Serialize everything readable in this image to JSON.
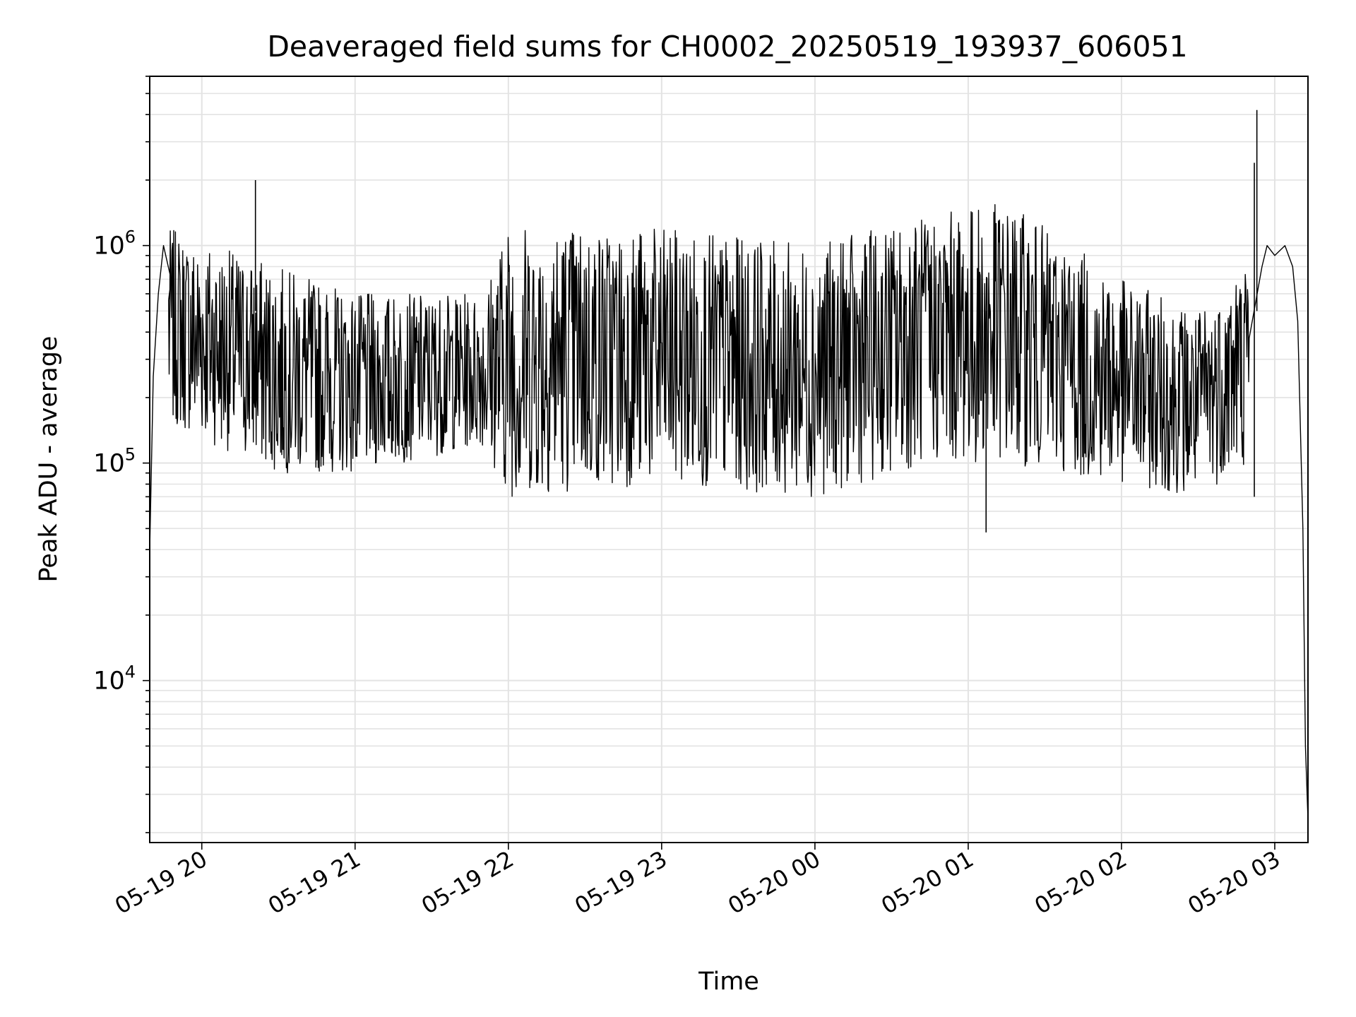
{
  "chart_data": {
    "type": "line",
    "title": "Deaveraged field sums for CH0002_20250519_193937_606051",
    "xlabel": "Time",
    "ylabel": "Peak ADU - average",
    "yscale": "log",
    "ylim": [
      1800,
      6000000
    ],
    "xlim": [
      "2025-05-19 19:39:37",
      "2025-05-20 03:13:00"
    ],
    "grid": true,
    "line_color": "#000000",
    "x_ticks": [
      {
        "t": "2025-05-19 20:00",
        "label": "05-19 20"
      },
      {
        "t": "2025-05-19 21:00",
        "label": "05-19 21"
      },
      {
        "t": "2025-05-19 22:00",
        "label": "05-19 22"
      },
      {
        "t": "2025-05-19 23:00",
        "label": "05-19 23"
      },
      {
        "t": "2025-05-20 00:00",
        "label": "05-20 00"
      },
      {
        "t": "2025-05-20 01:00",
        "label": "05-20 01"
      },
      {
        "t": "2025-05-20 02:00",
        "label": "05-20 02"
      },
      {
        "t": "2025-05-20 03:00",
        "label": "05-20 03"
      }
    ],
    "y_ticks": [
      {
        "value": 10000,
        "base": "10",
        "exp": "4"
      },
      {
        "value": 100000,
        "base": "10",
        "exp": "5"
      },
      {
        "value": 1000000,
        "base": "10",
        "exp": "6"
      }
    ],
    "series": [
      {
        "x": [
          "2025-05-19 19:39:37",
          "2025-05-19 19:41",
          "2025-05-19 19:43",
          "2025-05-19 19:45",
          "2025-05-19 19:48",
          "2025-05-19 19:50",
          "2025-05-19 19:53",
          "2025-05-19 19:56",
          "2025-05-19 19:59",
          "2025-05-19 20:05",
          "2025-05-19 20:11",
          "2025-05-19 20:16",
          "2025-05-19 20:21",
          "2025-05-19 20:24",
          "2025-05-19 20:30",
          "2025-05-19 20:40",
          "2025-05-19 20:50",
          "2025-05-19 21:00",
          "2025-05-19 21:10",
          "2025-05-19 21:20",
          "2025-05-19 21:30",
          "2025-05-19 21:40",
          "2025-05-19 21:50",
          "2025-05-19 21:56",
          "2025-05-19 22:00",
          "2025-05-19 22:10",
          "2025-05-19 22:20",
          "2025-05-19 22:30",
          "2025-05-19 22:40",
          "2025-05-19 22:50",
          "2025-05-19 23:00",
          "2025-05-19 23:10",
          "2025-05-19 23:20",
          "2025-05-19 23:30",
          "2025-05-19 23:40",
          "2025-05-19 23:50",
          "2025-05-20 00:00",
          "2025-05-20 00:10",
          "2025-05-20 00:20",
          "2025-05-20 00:30",
          "2025-05-20 00:40",
          "2025-05-20 00:50",
          "2025-05-20 01:00",
          "2025-05-20 01:05",
          "2025-05-20 01:10",
          "2025-05-20 01:20",
          "2025-05-20 01:30",
          "2025-05-20 01:40",
          "2025-05-20 01:50",
          "2025-05-20 02:00",
          "2025-05-20 02:10",
          "2025-05-20 02:20",
          "2025-05-20 02:30",
          "2025-05-20 02:40",
          "2025-05-20 02:50",
          "2025-05-20 02:55",
          "2025-05-20 02:57",
          "2025-05-20 03:00",
          "2025-05-20 03:04",
          "2025-05-20 03:07",
          "2025-05-20 03:09",
          "2025-05-20 03:11",
          "2025-05-20 03:12",
          "2025-05-20 03:13"
        ],
        "y": [
          40000,
          250000,
          600000,
          1000000,
          700000,
          400000,
          550000,
          300000,
          400000,
          500000,
          350000,
          300000,
          500000,
          2000000,
          400000,
          250000,
          220000,
          200000,
          250000,
          220000,
          200000,
          250000,
          220000,
          100000,
          300000,
          400000,
          600000,
          500000,
          450000,
          400000,
          500000,
          450000,
          500000,
          550000,
          600000,
          500000,
          450000,
          400000,
          500000,
          700000,
          900000,
          800000,
          600000,
          400000,
          700000,
          600000,
          400000,
          300000,
          350000,
          250000,
          200000,
          180000,
          150000,
          160000,
          250000,
          800000,
          1000000,
          900000,
          1000000,
          800000,
          450000,
          50000,
          5000,
          2300
        ]
      }
    ],
    "noise_band": {
      "x": [
        "2025-05-19 19:47",
        "2025-05-19 20:30",
        "2025-05-19 21:00",
        "2025-05-19 21:50",
        "2025-05-19 22:00",
        "2025-05-19 23:00",
        "2025-05-20 00:00",
        "2025-05-20 00:45",
        "2025-05-20 01:15",
        "2025-05-20 02:00",
        "2025-05-20 02:30",
        "2025-05-20 02:50"
      ],
      "low": [
        150000,
        90000,
        90000,
        120000,
        70000,
        80000,
        70000,
        100000,
        100000,
        80000,
        70000,
        100000
      ],
      "high": [
        1200000,
        800000,
        600000,
        600000,
        1300000,
        1200000,
        1000000,
        1400000,
        1600000,
        700000,
        500000,
        900000
      ]
    },
    "spikes": [
      {
        "t": "2025-05-19 20:21",
        "value": 2000000
      },
      {
        "t": "2025-05-20 01:07",
        "value": 48000
      },
      {
        "t": "2025-05-20 02:53",
        "value": 4200000
      },
      {
        "t": "2025-05-20 02:52",
        "value": 2400000
      },
      {
        "t": "2025-05-20 02:52",
        "value": 70000
      }
    ]
  }
}
